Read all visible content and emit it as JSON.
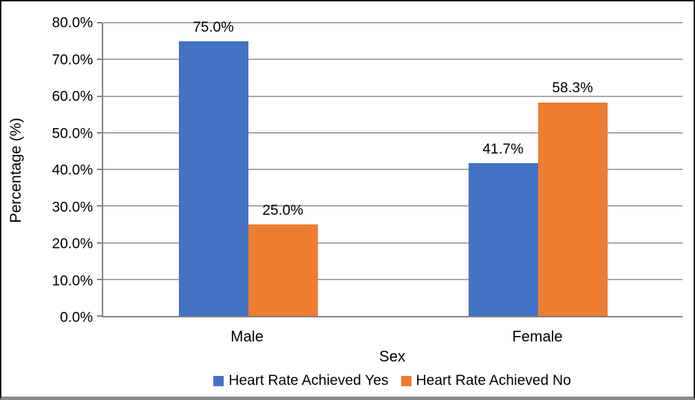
{
  "chart_data": {
    "type": "bar",
    "title": "",
    "xlabel": "Sex",
    "ylabel": "Percentage (%)",
    "categories": [
      "Male",
      "Female"
    ],
    "series": [
      {
        "name": "Heart Rate Achieved Yes",
        "color": "#4472C4",
        "values": [
          75.0,
          41.7
        ],
        "value_labels": [
          "75.0%",
          "41.7%"
        ]
      },
      {
        "name": "Heart Rate Achieved No",
        "color": "#ED7D31",
        "values": [
          25.0,
          58.3
        ],
        "value_labels": [
          "25.0%",
          "58.3%"
        ]
      }
    ],
    "ylim": [
      0,
      80
    ],
    "ytick_interval": 10,
    "ytick_labels": [
      "0.0%",
      "10.0%",
      "20.0%",
      "30.0%",
      "40.0%",
      "50.0%",
      "60.0%",
      "70.0%",
      "80.0%"
    ],
    "grid": "horizontal-only",
    "legend_position": "bottom-center",
    "colors": {
      "gridline": "#a6a6a6",
      "axis": "#7f7f7f",
      "text": "#000000",
      "frame": "#111111",
      "bottom_band": "#8a8a8a"
    }
  }
}
